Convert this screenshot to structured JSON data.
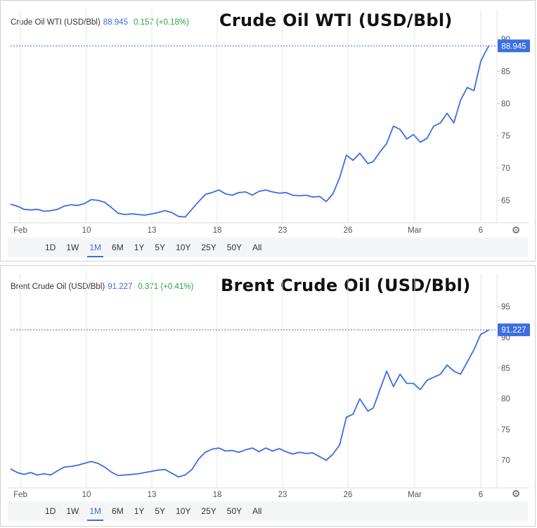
{
  "timeframes": [
    "1D",
    "1W",
    "1M",
    "6M",
    "1Y",
    "5Y",
    "10Y",
    "25Y",
    "50Y",
    "All"
  ],
  "active_timeframe": "1M",
  "colors": {
    "line": "#3b6ee0",
    "price_tag": "#3b6ee0",
    "positive": "#2ea043",
    "grid": "#e6e6e6"
  },
  "icons": {
    "settings": "gear-icon"
  },
  "panels": [
    {
      "id": "wti",
      "instrument": "Crude Oil WTI (USD/Bbl)",
      "price": "88.945",
      "change": "0.157 (+0.18%)",
      "title": "Crude Oil WTI (USD/Bbl)",
      "price_tag": "88.945"
    },
    {
      "id": "brent",
      "instrument": "Brent Crude Oil (USD/Bbl)",
      "price": "91.227",
      "change": "0.371 (+0.41%)",
      "title": "Brent Crude Oil (USD/Bbl)",
      "price_tag": "91.227"
    }
  ],
  "chart_data": [
    {
      "type": "line",
      "title": "Crude Oil WTI (USD/Bbl)",
      "x_tick_labels": [
        "Feb",
        "10",
        "13",
        "18",
        "23",
        "26",
        "Mar",
        "6"
      ],
      "y_ticks": [
        65,
        70,
        75,
        80,
        85,
        90
      ],
      "ylim": [
        61.5,
        90.5
      ],
      "xlim": [
        0,
        36
      ],
      "grid": true,
      "last_value": 88.945,
      "series": [
        {
          "x": [
            0,
            0.5,
            1,
            1.5,
            2,
            2.5,
            3,
            3.5,
            4,
            4.5,
            5,
            5.5,
            6,
            6.5,
            7,
            7.5,
            8,
            8.5,
            9,
            9.5,
            10,
            10.5,
            11,
            11.5,
            12,
            12.5,
            13,
            13.5,
            14,
            14.5,
            15,
            15.5,
            16,
            16.5,
            17,
            17.5,
            18,
            18.5,
            19,
            19.5,
            20,
            20.5,
            21,
            21.5,
            22,
            22.5,
            23,
            23.5,
            24,
            24.5,
            25,
            25.5,
            26,
            26.3,
            26.6,
            27,
            27.5,
            28,
            28.5,
            29,
            29.5,
            30,
            30.5,
            31,
            31.5,
            32,
            32.5,
            33,
            33.5,
            34,
            34.5,
            35,
            35.3,
            35.6
          ],
          "y": [
            64.4,
            64.1,
            63.6,
            63.5,
            63.6,
            63.3,
            63.4,
            63.6,
            64.1,
            64.3,
            64.2,
            64.5,
            65.1,
            65.0,
            64.7,
            63.9,
            63.0,
            62.8,
            62.9,
            62.8,
            62.7,
            62.9,
            63.1,
            63.4,
            63.1,
            62.5,
            62.4,
            63.6,
            64.8,
            65.9,
            66.2,
            66.6,
            66.0,
            65.8,
            66.2,
            66.3,
            65.8,
            66.4,
            66.6,
            66.3,
            66.1,
            66.2,
            65.8,
            65.7,
            65.8,
            65.5,
            65.6,
            64.8,
            66.0,
            68.5,
            72.0,
            71.2,
            72.3,
            71.5,
            70.7,
            71.0,
            72.5,
            73.8,
            76.5,
            76.0,
            74.5,
            75.2,
            74.0,
            74.6,
            76.5,
            77.0,
            78.5,
            77.0,
            80.5,
            82.5,
            82.0,
            86.5,
            87.8,
            88.945
          ]
        }
      ]
    },
    {
      "type": "line",
      "title": "Brent Crude Oil (USD/Bbl)",
      "x_tick_labels": [
        "Feb",
        "10",
        "13",
        "18",
        "23",
        "26",
        "Mar",
        "6"
      ],
      "y_ticks": [
        70,
        75,
        80,
        85,
        90,
        95
      ],
      "ylim": [
        65.5,
        96.5
      ],
      "xlim": [
        0,
        36
      ],
      "grid": true,
      "last_value": 91.227,
      "series": [
        {
          "x": [
            0,
            0.5,
            1,
            1.5,
            2,
            2.5,
            3,
            3.5,
            4,
            4.5,
            5,
            5.5,
            6,
            6.5,
            7,
            7.5,
            8,
            8.5,
            9,
            9.5,
            10,
            10.5,
            11,
            11.5,
            12,
            12.5,
            13,
            13.5,
            14,
            14.5,
            15,
            15.5,
            16,
            16.5,
            17,
            17.5,
            18,
            18.5,
            19,
            19.5,
            20,
            20.5,
            21,
            21.5,
            22,
            22.5,
            23,
            23.5,
            24,
            24.5,
            25,
            25.5,
            26,
            26.3,
            26.6,
            27,
            27.5,
            28,
            28.5,
            29,
            29.5,
            30,
            30.5,
            31,
            31.5,
            32,
            32.5,
            33,
            33.5,
            34,
            34.5,
            35,
            35.3,
            35.6
          ],
          "y": [
            68.6,
            68.0,
            67.7,
            68.0,
            67.6,
            67.8,
            67.6,
            68.3,
            68.9,
            69.0,
            69.2,
            69.5,
            69.8,
            69.5,
            68.9,
            68.1,
            67.5,
            67.6,
            67.7,
            67.8,
            68.0,
            68.2,
            68.4,
            68.5,
            67.9,
            67.3,
            67.6,
            68.5,
            70.2,
            71.3,
            71.8,
            72.0,
            71.5,
            71.6,
            71.3,
            71.7,
            72.0,
            71.4,
            72.0,
            71.5,
            71.9,
            71.4,
            71.0,
            71.3,
            71.1,
            71.2,
            70.6,
            70.0,
            71.0,
            72.5,
            77.0,
            77.5,
            80.0,
            79.0,
            78.0,
            78.5,
            81.5,
            84.5,
            82.0,
            84.0,
            82.5,
            82.5,
            81.5,
            83.0,
            83.5,
            84.0,
            85.5,
            84.5,
            84.0,
            86.0,
            88.0,
            90.5,
            90.8,
            91.227
          ]
        }
      ]
    }
  ]
}
